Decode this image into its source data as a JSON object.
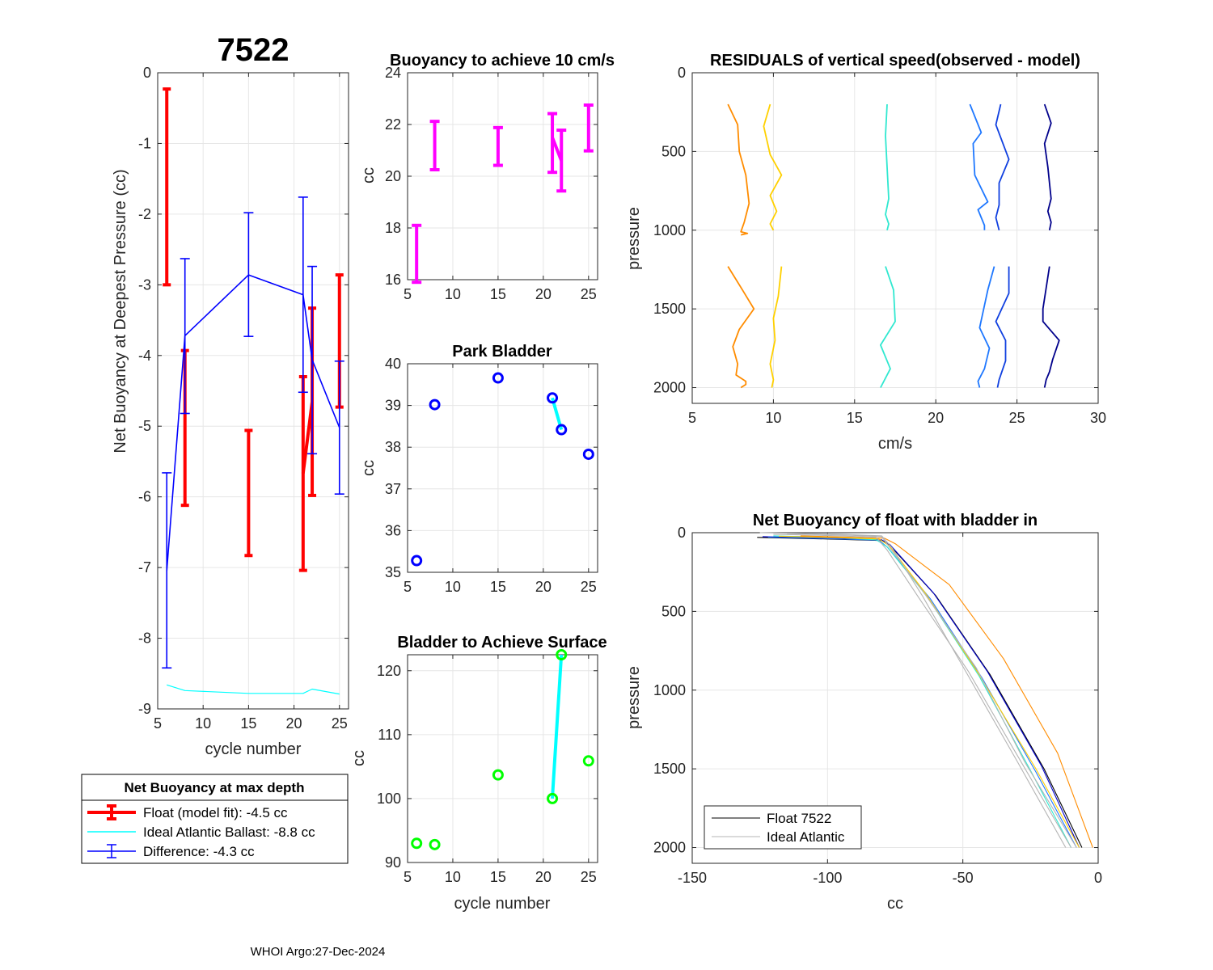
{
  "figure": {
    "float_id": "7522",
    "footer": "WHOI Argo:27-Dec-2024"
  },
  "colors": {
    "red": "#ff0000",
    "blue": "#0000ff",
    "cyan": "#00ffff",
    "magenta": "#ff00ff",
    "green": "#00ff00",
    "gray": "#b4b4b4"
  },
  "chart_data": [
    {
      "id": "net_buoyancy",
      "type": "line",
      "title": "7522",
      "xlabel": "cycle number",
      "ylabel": "Net Buoyancy at Deepest Pressure (cc)",
      "xlim": [
        5,
        26
      ],
      "ylim": [
        -9,
        0
      ],
      "xticks": [
        5,
        10,
        15,
        20,
        25
      ],
      "yticks": [
        -9,
        -8,
        -7,
        -6,
        -5,
        -4,
        -3,
        -2,
        -1,
        0
      ],
      "grid": true,
      "series": [
        {
          "name": "Float (model fit)",
          "kind": "errorbar",
          "color": "red",
          "x": [
            6,
            8,
            15,
            21,
            22,
            25
          ],
          "y": [
            -1.62,
            -5.03,
            -5.95,
            -5.67,
            -4.66,
            -3.8
          ],
          "low": [
            -3.0,
            -6.12,
            -6.83,
            -7.04,
            -5.98,
            -4.73
          ],
          "high": [
            -0.23,
            -3.93,
            -5.06,
            -4.3,
            -3.33,
            -2.86
          ]
        },
        {
          "name": "Ideal Atlantic Ballast",
          "kind": "line",
          "color": "cyan",
          "x": [
            6,
            8,
            15,
            21,
            22,
            25
          ],
          "y": [
            -8.66,
            -8.74,
            -8.78,
            -8.78,
            -8.72,
            -8.79
          ]
        },
        {
          "name": "Difference",
          "kind": "errorbar_line",
          "color": "blue",
          "x": [
            6,
            8,
            15,
            21,
            22,
            25
          ],
          "y": [
            -7.05,
            -3.72,
            -2.86,
            -3.14,
            -4.06,
            -5.02
          ],
          "low": [
            -8.42,
            -4.82,
            -3.73,
            -4.52,
            -5.39,
            -5.96
          ],
          "high": [
            -5.66,
            -2.63,
            -1.98,
            -1.76,
            -2.74,
            -4.08
          ]
        }
      ],
      "legend": {
        "title": "Net Buoyancy at max depth",
        "entries": [
          "Float (model fit):  -4.5 cc",
          "Ideal Atlantic Ballast:  -8.8 cc",
          "Difference:  -4.3 cc"
        ],
        "placement": "below"
      }
    },
    {
      "id": "buoyancy_10",
      "type": "errorbar",
      "title": "Buoyancy to achieve 10 cm/s",
      "ylabel": "cc",
      "xlim": [
        5,
        26
      ],
      "ylim": [
        16,
        24
      ],
      "xticks": [
        5,
        10,
        15,
        20,
        25
      ],
      "yticks": [
        16,
        18,
        20,
        22,
        24
      ],
      "grid": true,
      "series": [
        {
          "name": "buoyancy",
          "color": "magenta",
          "x": [
            6,
            8,
            15,
            21,
            22,
            25
          ],
          "low": [
            15.9,
            20.25,
            20.42,
            20.15,
            19.43,
            20.98
          ],
          "high": [
            18.1,
            22.12,
            21.88,
            22.42,
            21.78,
            22.75
          ],
          "connect": [
            [
              3,
              4
            ]
          ],
          "connect_y": [
            21.5,
            20.6
          ]
        }
      ]
    },
    {
      "id": "park_bladder",
      "type": "scatter",
      "title": "Park Bladder",
      "ylabel": "cc",
      "xlim": [
        5,
        26
      ],
      "ylim": [
        35,
        40
      ],
      "xticks": [
        5,
        10,
        15,
        20,
        25
      ],
      "yticks": [
        35,
        36,
        37,
        38,
        39,
        40
      ],
      "grid": true,
      "series": [
        {
          "name": "park",
          "color": "blue",
          "x": [
            6,
            8,
            15,
            21,
            22,
            25
          ],
          "y": [
            35.28,
            39.02,
            39.66,
            39.18,
            38.42,
            37.83
          ],
          "connect": [
            [
              3,
              4
            ]
          ]
        }
      ]
    },
    {
      "id": "bladder_surface",
      "type": "scatter",
      "title": "Bladder to Achieve Surface",
      "xlabel": "cycle number",
      "ylabel": "cc",
      "xlim": [
        5,
        26
      ],
      "ylim": [
        90,
        122.5
      ],
      "xticks": [
        5,
        10,
        15,
        20,
        25
      ],
      "yticks": [
        90,
        100,
        110,
        120
      ],
      "grid": true,
      "series": [
        {
          "name": "surface",
          "color": "green",
          "x": [
            6,
            8,
            15,
            21,
            22,
            25
          ],
          "y": [
            93.0,
            92.8,
            103.7,
            100.0,
            122.5,
            105.9
          ],
          "connect": [
            [
              3,
              4
            ]
          ]
        }
      ]
    },
    {
      "id": "residuals",
      "type": "line",
      "title": "RESIDUALS of vertical speed(observed - model)",
      "xlabel": "cm/s",
      "ylabel": "pressure",
      "xlim": [
        5,
        30
      ],
      "ylim": [
        0,
        2100
      ],
      "y_reversed": true,
      "xticks": [
        5,
        10,
        15,
        20,
        25,
        30
      ],
      "yticks": [
        0,
        500,
        1000,
        1500,
        2000
      ],
      "grid": true,
      "series": [
        {
          "color": "#ff8c00",
          "x": [
            7.2,
            7.8,
            7.9,
            8.3,
            8.5,
            8.2,
            8.0,
            8.4,
            8.0
          ],
          "y": [
            200,
            330,
            500,
            650,
            830,
            950,
            1010,
            1020,
            1030
          ]
        },
        {
          "color": "#ffd000",
          "x": [
            9.8,
            9.4,
            9.8,
            10.5,
            9.8,
            10.2,
            9.8,
            10.0
          ],
          "y": [
            200,
            340,
            520,
            650,
            780,
            880,
            960,
            1000
          ]
        },
        {
          "color": "#30e8d0",
          "x": [
            17.0,
            16.9,
            17.0,
            17.1,
            16.9,
            17.1,
            17.0
          ],
          "y": [
            200,
            400,
            600,
            800,
            900,
            960,
            1000
          ]
        },
        {
          "color": "#1f78ff",
          "x": [
            22.1,
            22.8,
            22.3,
            22.4,
            23.2,
            22.6,
            23.0,
            23.0
          ],
          "y": [
            200,
            380,
            450,
            650,
            820,
            870,
            970,
            1000
          ]
        },
        {
          "color": "#1040e0",
          "x": [
            24.0,
            23.7,
            24.5,
            23.9,
            23.9,
            23.7,
            23.9
          ],
          "y": [
            200,
            330,
            550,
            700,
            840,
            920,
            1000
          ]
        },
        {
          "color": "#00008b",
          "x": [
            26.7,
            27.1,
            26.7,
            26.9,
            27.1,
            26.9,
            27.1,
            27.0
          ],
          "y": [
            200,
            320,
            450,
            600,
            800,
            880,
            950,
            1000
          ]
        },
        {
          "color": "#ff8c00",
          "x": [
            7.2,
            8.1,
            8.8,
            7.9,
            7.5,
            7.8,
            7.7,
            8.3,
            8.3,
            8.0
          ],
          "y": [
            1230,
            1380,
            1500,
            1630,
            1740,
            1850,
            1920,
            1960,
            1980,
            2000
          ]
        },
        {
          "color": "#ffd000",
          "x": [
            10.5,
            10.3,
            10.0,
            10.1,
            9.8,
            10.0,
            9.9
          ],
          "y": [
            1230,
            1420,
            1560,
            1700,
            1850,
            1950,
            2000
          ]
        },
        {
          "color": "#30e8d0",
          "x": [
            16.9,
            17.4,
            17.5,
            16.6,
            17.2,
            16.6
          ],
          "y": [
            1230,
            1380,
            1580,
            1730,
            1880,
            2000
          ]
        },
        {
          "color": "#1f78ff",
          "x": [
            23.6,
            23.2,
            22.7,
            23.3,
            23.0,
            22.6,
            22.7
          ],
          "y": [
            1230,
            1380,
            1620,
            1750,
            1880,
            1960,
            2000
          ]
        },
        {
          "color": "#1040e0",
          "x": [
            24.5,
            24.5,
            23.7,
            24.3,
            24.3,
            23.9,
            23.8
          ],
          "y": [
            1230,
            1400,
            1580,
            1700,
            1830,
            1950,
            2000
          ]
        },
        {
          "color": "#00008b",
          "x": [
            27.0,
            26.6,
            26.6,
            27.6,
            27.2,
            27.0,
            26.8,
            26.7
          ],
          "y": [
            1230,
            1500,
            1580,
            1700,
            1820,
            1900,
            1950,
            2000
          ]
        }
      ]
    },
    {
      "id": "net_buoyancy_profile",
      "type": "line",
      "title": "Net Buoyancy of float with bladder in",
      "xlabel": "cc",
      "ylabel": "pressure",
      "xlim": [
        -150,
        0
      ],
      "ylim": [
        0,
        2100
      ],
      "y_reversed": true,
      "xticks": [
        -150,
        -100,
        -50,
        0
      ],
      "yticks": [
        0,
        500,
        1000,
        1500,
        2000
      ],
      "grid": true,
      "series": [
        {
          "name": "Float 7522",
          "color": "#000000",
          "x": [
            -126,
            -100,
            -80,
            -77,
            -60,
            -40,
            -20,
            -6
          ],
          "y": [
            30,
            40,
            50,
            80,
            400,
            900,
            1500,
            2000
          ]
        },
        {
          "color": "#0000cd",
          "x": [
            -124,
            -98,
            -80,
            -77,
            -61,
            -41,
            -21,
            -7
          ],
          "y": [
            25,
            35,
            45,
            75,
            380,
            880,
            1480,
            2000
          ]
        },
        {
          "color": "#1f78ff",
          "x": [
            -122,
            -99,
            -81,
            -78,
            -62,
            -43,
            -23,
            -8
          ],
          "y": [
            28,
            38,
            48,
            90,
            420,
            920,
            1520,
            2000
          ]
        },
        {
          "color": "#30e8d0",
          "x": [
            -120,
            -97,
            -82,
            -78,
            -63,
            -44,
            -25,
            -10
          ],
          "y": [
            20,
            30,
            45,
            90,
            410,
            910,
            1510,
            2000
          ]
        },
        {
          "color": "#ffd000",
          "x": [
            -118,
            -96,
            -81,
            -77,
            -64,
            -44,
            -23,
            -7
          ],
          "y": [
            22,
            32,
            40,
            85,
            380,
            900,
            1500,
            2000
          ]
        },
        {
          "color": "#ff8c00",
          "x": [
            -110,
            -90,
            -79,
            -75,
            -55,
            -35,
            -15,
            -2
          ],
          "y": [
            20,
            30,
            35,
            70,
            330,
            800,
            1400,
            2000
          ]
        },
        {
          "name": "Ideal Atlantic",
          "color": "#b4b4b4",
          "x": [
            -125,
            -95,
            -80,
            -76,
            -65,
            -50,
            -30,
            -12
          ],
          "y": [
            0,
            10,
            20,
            100,
            400,
            850,
            1450,
            2000
          ]
        },
        {
          "color": "#b4b4b4",
          "x": [
            -120,
            -95,
            -82,
            -78,
            -66,
            -48,
            -28,
            -10
          ],
          "y": [
            10,
            20,
            30,
            110,
            420,
            880,
            1470,
            2000
          ]
        },
        {
          "color": "#b4b4b4",
          "x": [
            -115,
            -93,
            -80,
            -77,
            -64,
            -45,
            -27,
            -8
          ],
          "y": [
            5,
            15,
            25,
            95,
            390,
            860,
            1460,
            2000
          ]
        }
      ],
      "legend": {
        "entries": [
          "Float 7522",
          "Ideal Atlantic"
        ],
        "placement": "bottom-left"
      }
    }
  ]
}
